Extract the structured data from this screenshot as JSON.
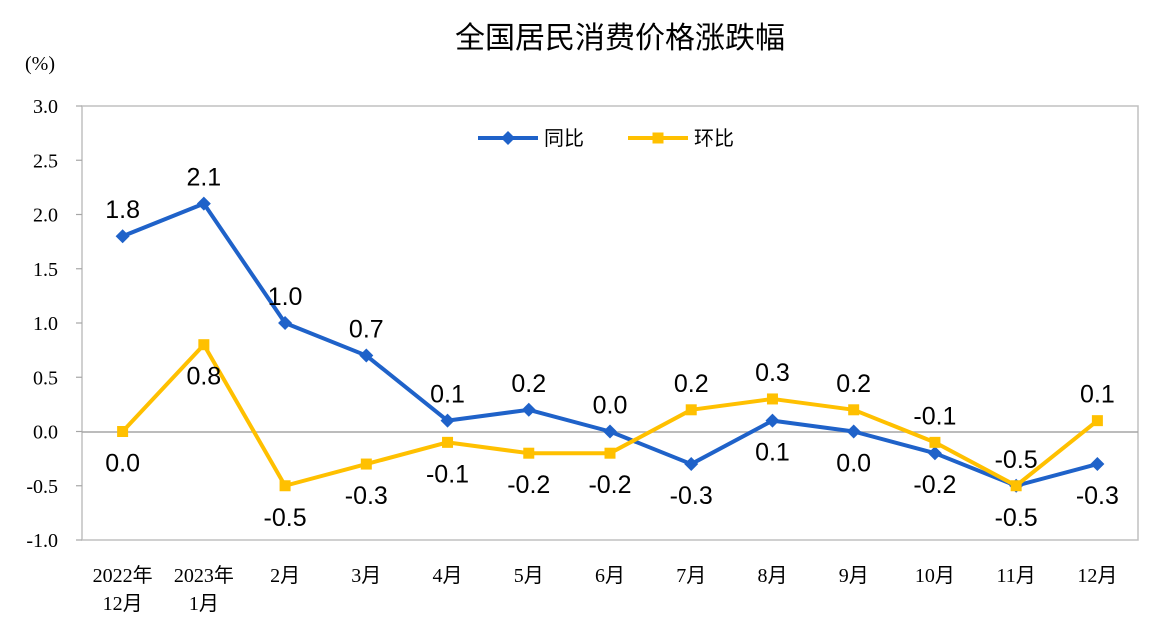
{
  "chart_data": {
    "type": "line",
    "title": "全国居民消费价格涨跌幅",
    "unit_label": "(%)",
    "categories": [
      [
        "2022年",
        "12月"
      ],
      [
        "2023年",
        "1月"
      ],
      [
        "2月"
      ],
      [
        "3月"
      ],
      [
        "4月"
      ],
      [
        "5月"
      ],
      [
        "6月"
      ],
      [
        "7月"
      ],
      [
        "8月"
      ],
      [
        "9月"
      ],
      [
        "10月"
      ],
      [
        "11月"
      ],
      [
        "12月"
      ]
    ],
    "yticks": [
      "3.0",
      "2.5",
      "2.0",
      "1.5",
      "1.0",
      "0.5",
      "0.0",
      "-0.5",
      "-1.0"
    ],
    "ylim": [
      -1.0,
      3.0
    ],
    "legend_position": "top-center",
    "series": [
      {
        "name": "同比",
        "color": "#1f62c9",
        "marker": "diamond",
        "values": [
          1.8,
          2.1,
          1.0,
          0.7,
          0.1,
          0.2,
          0.0,
          -0.3,
          0.1,
          0.0,
          -0.2,
          -0.5,
          -0.3
        ],
        "labels": [
          "1.8",
          "2.1",
          "1.0",
          "0.7",
          "0.1",
          "0.2",
          "0.0",
          "-0.3",
          "0.1",
          "0.0",
          "-0.2",
          "-0.5",
          "-0.3"
        ]
      },
      {
        "name": "环比",
        "color": "#ffc000",
        "marker": "square",
        "values": [
          0.0,
          0.8,
          -0.5,
          -0.3,
          -0.1,
          -0.2,
          -0.2,
          0.2,
          0.3,
          0.2,
          -0.1,
          -0.5,
          0.1
        ],
        "labels": [
          "0.0",
          "0.8",
          "-0.5",
          "-0.3",
          "-0.1",
          "-0.2",
          "-0.2",
          "0.2",
          "0.3",
          "0.2",
          "-0.1",
          "-0.5",
          "0.1"
        ]
      }
    ]
  }
}
